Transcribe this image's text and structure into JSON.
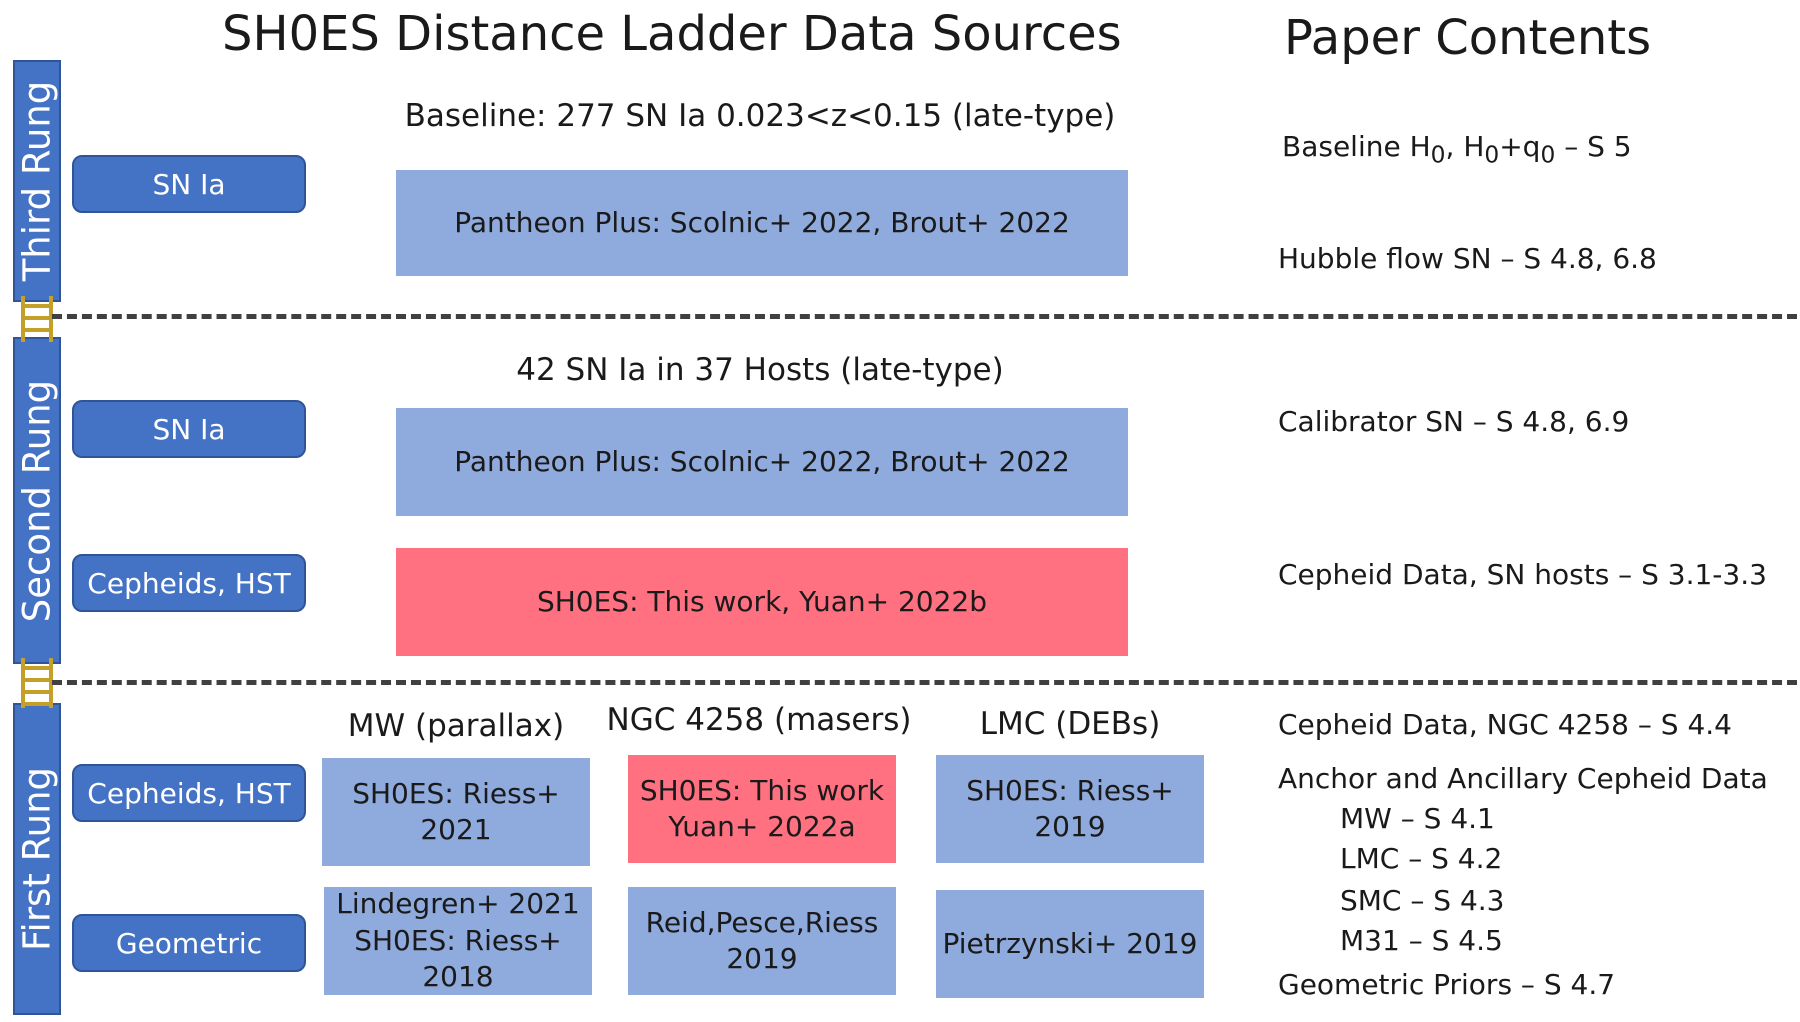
{
  "title": "SH0ES Distance Ladder Data Sources",
  "paper_title": "Paper Contents",
  "rungs": {
    "third": "Third Rung",
    "second": "Second Rung",
    "first": "First Rung"
  },
  "third_rung": {
    "header": "Baseline: 277 SN Ia 0.023<z<0.15 (late-type)",
    "pill": "SN Ia",
    "box": "Pantheon Plus: Scolnic+ 2022, Brout+ 2022"
  },
  "second_rung": {
    "header": "42 SN Ia in 37 Hosts (late-type)",
    "pill_sn": "SN Ia",
    "box_sn": "Pantheon Plus: Scolnic+ 2022, Brout+ 2022",
    "pill_ceph": "Cepheids, HST",
    "box_ceph": "SH0ES: This work, Yuan+ 2022b"
  },
  "first_rung": {
    "col_mw": "MW (parallax)",
    "col_ngc": "NGC 4258 (masers)",
    "col_lmc": "LMC (DEBs)",
    "pill_ceph": "Cepheids, HST",
    "pill_geo": "Geometric",
    "mw_ceph": "SH0ES: Riess+ 2021",
    "ngc_ceph_1": "SH0ES: This work",
    "ngc_ceph_2": "Yuan+ 2022a",
    "lmc_ceph": "SH0ES: Riess+ 2019",
    "mw_geo_1": "Lindegren+ 2021",
    "mw_geo_2": "SH0ES: Riess+ 2018",
    "ngc_geo_1": "Reid,Pesce,Riess",
    "ngc_geo_2": "2019",
    "lmc_geo": "Pietrzynski+ 2019"
  },
  "paper_contents": {
    "baseline_prefix": "Baseline H",
    "baseline_sub1": "0",
    "baseline_mid": ", H",
    "baseline_sub2": "0",
    "baseline_plus": "+q",
    "baseline_sub3": "0",
    "baseline_suffix": " – S 5",
    "hubble_flow": "Hubble flow SN – S 4.8, 6.8",
    "calibrator": "Calibrator SN – S 4.8, 6.9",
    "cepheid_hosts": "Cepheid Data, SN hosts – S 3.1-3.3",
    "cepheid_ngc": "Cepheid Data, NGC 4258 – S 4.4",
    "anchor": "Anchor and Ancillary Cepheid Data",
    "mw": "MW – S 4.1",
    "lmc": "LMC – S 4.2",
    "smc": "SMC – S 4.3",
    "m31": "M31 – S 4.5",
    "geometric": "Geometric Priors – S 4.7"
  },
  "colors": {
    "rung_blue": "#4472c4",
    "box_blue": "#8faadc",
    "box_red": "#ff7080",
    "ladder_gold": "#c5a028"
  }
}
